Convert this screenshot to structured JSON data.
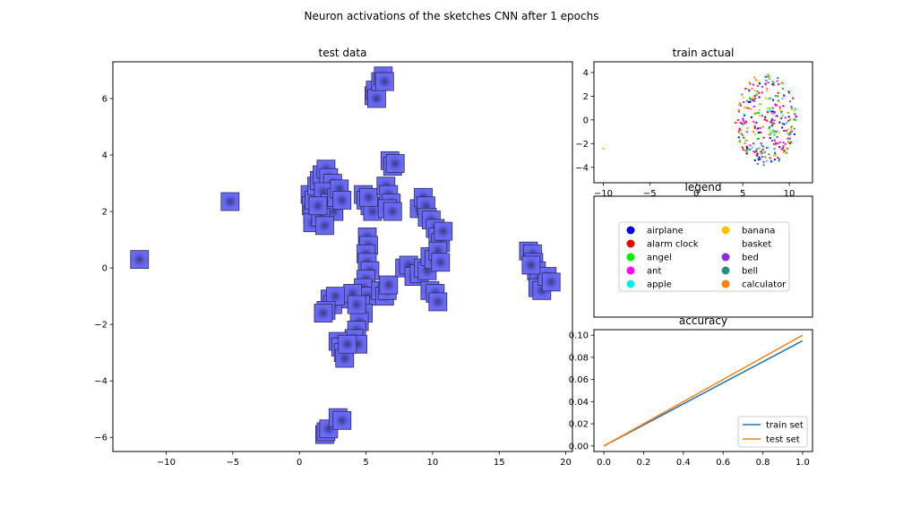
{
  "figure": {
    "suptitle": "Neuron activations of the sketches CNN after 1 epochs"
  },
  "chart_data": [
    {
      "id": "test-data",
      "type": "scatter",
      "title": "test data",
      "marker": "image-thumbnail",
      "xlim": [
        -14,
        20.5
      ],
      "ylim": [
        -6.5,
        7.3
      ],
      "xticks": [
        -10,
        -5,
        0,
        5,
        10,
        15,
        20
      ],
      "yticks": [
        -6,
        -4,
        -2,
        0,
        2,
        4,
        6
      ],
      "points": [
        [
          -12,
          0.3
        ],
        [
          -5.2,
          2.35
        ],
        [
          5.6,
          6.1
        ],
        [
          5.7,
          6.3
        ],
        [
          5.8,
          6.0
        ],
        [
          6.1,
          6.6
        ],
        [
          6.3,
          6.8
        ],
        [
          6.4,
          6.6
        ],
        [
          6.8,
          3.8
        ],
        [
          7.0,
          3.6
        ],
        [
          7.2,
          3.7
        ],
        [
          0.8,
          2.6
        ],
        [
          0.9,
          2.2
        ],
        [
          1.0,
          1.9
        ],
        [
          1.0,
          1.6
        ],
        [
          1.1,
          2.4
        ],
        [
          1.3,
          2.9
        ],
        [
          1.5,
          3.1
        ],
        [
          1.7,
          3.3
        ],
        [
          2.0,
          3.5
        ],
        [
          2.2,
          3.2
        ],
        [
          2.5,
          3.0
        ],
        [
          1.8,
          2.7
        ],
        [
          2.0,
          2.1
        ],
        [
          2.3,
          2.3
        ],
        [
          2.6,
          2.0
        ],
        [
          2.8,
          2.5
        ],
        [
          3.0,
          2.8
        ],
        [
          3.2,
          2.4
        ],
        [
          1.6,
          1.8
        ],
        [
          1.9,
          1.5
        ],
        [
          1.4,
          2.2
        ],
        [
          4.8,
          2.6
        ],
        [
          5.0,
          2.4
        ],
        [
          5.3,
          2.2
        ],
        [
          5.5,
          2.0
        ],
        [
          5.2,
          2.5
        ],
        [
          6.5,
          2.9
        ],
        [
          6.7,
          2.6
        ],
        [
          6.9,
          2.3
        ],
        [
          6.6,
          2.1
        ],
        [
          7.0,
          2.0
        ],
        [
          9.0,
          2.1
        ],
        [
          9.3,
          2.5
        ],
        [
          9.5,
          2.2
        ],
        [
          9.6,
          1.8
        ],
        [
          9.9,
          1.7
        ],
        [
          10.2,
          1.4
        ],
        [
          10.4,
          1.1
        ],
        [
          10.6,
          0.9
        ],
        [
          10.8,
          1.3
        ],
        [
          5.1,
          1.1
        ],
        [
          5.2,
          0.8
        ],
        [
          5.0,
          0.5
        ],
        [
          5.1,
          0.2
        ],
        [
          5.3,
          -0.1
        ],
        [
          5.0,
          -0.4
        ],
        [
          4.8,
          -0.7
        ],
        [
          5.1,
          -1.0
        ],
        [
          4.6,
          -1.3
        ],
        [
          4.8,
          -1.6
        ],
        [
          4.5,
          -1.9
        ],
        [
          4.3,
          -2.2
        ],
        [
          4.1,
          -2.5
        ],
        [
          4.4,
          -2.7
        ],
        [
          3.8,
          -1.1
        ],
        [
          4.0,
          -0.9
        ],
        [
          4.3,
          -1.3
        ],
        [
          6.1,
          -0.8
        ],
        [
          6.4,
          -1.0
        ],
        [
          6.6,
          -0.8
        ],
        [
          6.7,
          -0.6
        ],
        [
          7.9,
          0.0
        ],
        [
          8.2,
          0.1
        ],
        [
          8.6,
          -0.3
        ],
        [
          9.0,
          -0.2
        ],
        [
          9.3,
          0.0
        ],
        [
          9.6,
          -0.1
        ],
        [
          9.8,
          0.4
        ],
        [
          10.1,
          0.3
        ],
        [
          10.4,
          0.6
        ],
        [
          10.6,
          0.2
        ],
        [
          9.8,
          -0.8
        ],
        [
          10.2,
          -0.9
        ],
        [
          10.4,
          -1.2
        ],
        [
          2.3,
          -1.1
        ],
        [
          2.5,
          -1.3
        ],
        [
          2.7,
          -1.0
        ],
        [
          2.0,
          -1.5
        ],
        [
          1.8,
          -1.6
        ],
        [
          2.9,
          -2.6
        ],
        [
          3.1,
          -2.8
        ],
        [
          3.3,
          -3.0
        ],
        [
          3.4,
          -3.2
        ],
        [
          3.6,
          -2.7
        ],
        [
          1.9,
          -5.9
        ],
        [
          2.0,
          -5.8
        ],
        [
          2.2,
          -5.7
        ],
        [
          2.9,
          -5.3
        ],
        [
          3.2,
          -5.4
        ],
        [
          17.2,
          0.6
        ],
        [
          17.5,
          0.5
        ],
        [
          17.6,
          0.2
        ],
        [
          17.8,
          -0.1
        ],
        [
          18.0,
          -0.4
        ],
        [
          17.9,
          -0.7
        ],
        [
          18.2,
          -0.8
        ],
        [
          18.6,
          -0.3
        ],
        [
          18.9,
          -0.5
        ],
        [
          17.4,
          0.1
        ]
      ]
    },
    {
      "id": "train-actual",
      "type": "scatter",
      "title": "train actual",
      "xlim": [
        -11,
        12.5
      ],
      "ylim": [
        -5.3,
        4.9
      ],
      "xticks": [
        -10,
        -5,
        0,
        5,
        10
      ],
      "yticks": [
        -4,
        -2,
        0,
        2,
        4
      ],
      "cloud": {
        "center": [
          7.5,
          0.0
        ],
        "radius_x": 3.3,
        "radius_y": 3.9,
        "count": 330
      },
      "outliers": [
        [
          -10,
          -2.4
        ]
      ],
      "colors": [
        "#0000ff",
        "#ff0000",
        "#00e000",
        "#ff00ff",
        "#00e5ee",
        "#ffc000",
        "#8a2be2",
        "#2e8b80",
        "#ff7f0e"
      ]
    },
    {
      "id": "accuracy",
      "type": "line",
      "title": "accuracy",
      "xlim": [
        -0.05,
        1.05
      ],
      "ylim": [
        -0.005,
        0.105
      ],
      "xticks": [
        0.0,
        0.2,
        0.4,
        0.6,
        0.8,
        1.0
      ],
      "yticks": [
        0.0,
        0.02,
        0.04,
        0.06,
        0.08,
        0.1
      ],
      "xtick_labels": [
        "0.0",
        "0.2",
        "0.4",
        "0.6",
        "0.8",
        "1.0"
      ],
      "ytick_labels": [
        "0.00",
        "0.02",
        "0.04",
        "0.06",
        "0.08",
        "0.10"
      ],
      "legend_position": "lower-right",
      "series": [
        {
          "name": "train set",
          "color": "#1f77b4",
          "x": [
            0,
            1
          ],
          "y": [
            0.0,
            0.095
          ]
        },
        {
          "name": "test set",
          "color": "#ff7f0e",
          "x": [
            0,
            1
          ],
          "y": [
            0.0,
            0.1
          ]
        }
      ]
    }
  ],
  "legend_panel": {
    "title": "legend",
    "entries": [
      {
        "label": "airplane",
        "color": "#0000ee"
      },
      {
        "label": "alarm clock",
        "color": "#ee0000"
      },
      {
        "label": "angel",
        "color": "#00ee00"
      },
      {
        "label": "ant",
        "color": "#ff00ff"
      },
      {
        "label": "apple",
        "color": "#00eeee"
      },
      {
        "label": "banana",
        "color": "#ffc000"
      },
      {
        "label": "basket",
        "color": "#ffffff"
      },
      {
        "label": "bed",
        "color": "#8a2be2"
      },
      {
        "label": "bell",
        "color": "#2e8b80"
      },
      {
        "label": "calculator",
        "color": "#ff7f0e"
      }
    ]
  }
}
